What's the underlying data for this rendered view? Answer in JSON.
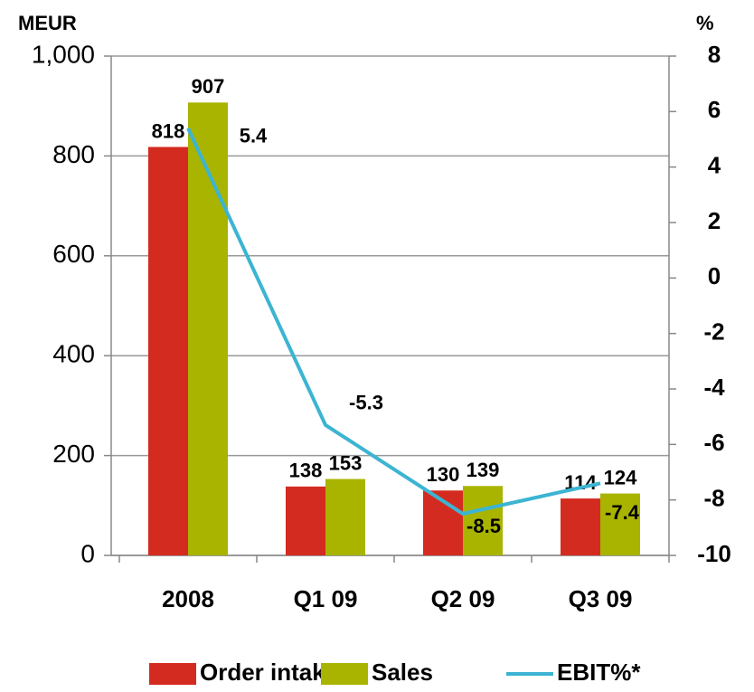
{
  "chart_data": {
    "type": "bar",
    "y_label": "MEUR",
    "y2_label": "%",
    "categories": [
      "2008",
      "Q1 09",
      "Q2 09",
      "Q3 09"
    ],
    "series": [
      {
        "name": "Order intake",
        "color": "#d42b20",
        "values": [
          818,
          138,
          130,
          114
        ]
      },
      {
        "name": "Sales",
        "color": "#a8b400",
        "values": [
          907,
          153,
          139,
          124
        ]
      },
      {
        "name": "EBIT%*",
        "color": "#3cb4d2",
        "type": "line",
        "axis": "y2",
        "values": [
          5.4,
          -5.3,
          -8.5,
          -7.4
        ]
      }
    ],
    "ylim": [
      0,
      1000
    ],
    "yticks": [
      0,
      200,
      400,
      600,
      800,
      {
        "value": 1000,
        "label": "1,000"
      }
    ],
    "y2lim": [
      -10,
      8
    ],
    "y2ticks": [
      -10,
      -8,
      -6,
      -4,
      -2,
      0,
      2,
      4,
      6,
      8
    ],
    "grid": true,
    "legend": "bottom"
  }
}
